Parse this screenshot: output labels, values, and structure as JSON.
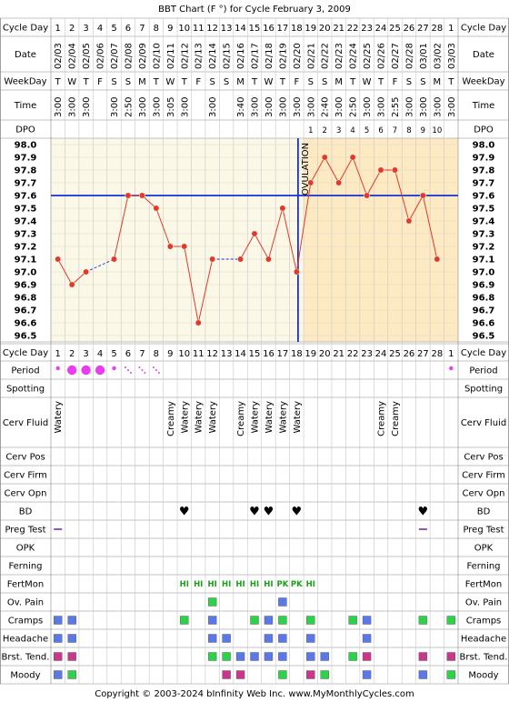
{
  "title": "BBT Chart (F °) for Cycle February 3, 2009",
  "footer": "Copyright © 2003-2024 bInfinity Web Inc.    www.MyMonthlyCycles.com",
  "colors": {
    "line": "#e23a2a",
    "point": "#e23a2a",
    "coverline": "#1a2fd6",
    "ovulation": "#1a2fd6",
    "post_ov_bg": "#fde9c2",
    "pre_bg": "#fbf8e8",
    "period": "#e83ef0",
    "heart": "#e23a7a",
    "fertmon": "#18a018",
    "green": "#2fd04a",
    "blue": "#5a78e6",
    "magenta": "#c8388a"
  },
  "labels": {
    "cycle_day": "Cycle Day",
    "date": "Date",
    "weekday": "WeekDay",
    "time": "Time",
    "dpo": "DPO",
    "ovulation": "OVULATION",
    "period": "Period",
    "spotting": "Spotting",
    "cerv_fluid": "Cerv Fluid",
    "cerv_pos": "Cerv Pos",
    "cerv_firm": "Cerv Firm",
    "cerv_opn": "Cerv Opn",
    "bd": "BD",
    "preg_test": "Preg Test",
    "opk": "OPK",
    "ferning": "Ferning",
    "fertmon": "FertMon",
    "ov_pain": "Ov. Pain",
    "cramps": "Cramps",
    "headache": "Headache",
    "brst_tend": "Brst. Tend.",
    "moody": "Moody"
  },
  "chart_data": {
    "type": "line",
    "title": "BBT Chart (F °) for Cycle February 3, 2009",
    "ylim": [
      96.5,
      98.0
    ],
    "yticks": [
      "98.0",
      "97.9",
      "97.8",
      "97.7",
      "97.6",
      "97.5",
      "97.4",
      "97.3",
      "97.2",
      "97.1",
      "97.0",
      "96.9",
      "96.8",
      "96.7",
      "96.6",
      "96.5"
    ],
    "cycle_days": [
      1,
      2,
      3,
      4,
      5,
      6,
      7,
      8,
      9,
      10,
      11,
      12,
      13,
      14,
      15,
      16,
      17,
      18,
      19,
      20,
      21,
      22,
      23,
      24,
      25,
      26,
      27,
      28,
      1
    ],
    "dates": [
      "02/03",
      "02/04",
      "02/05",
      "02/06",
      "02/07",
      "02/08",
      "02/09",
      "02/10",
      "02/11",
      "02/12",
      "02/13",
      "02/14",
      "02/15",
      "02/16",
      "02/17",
      "02/18",
      "02/19",
      "02/20",
      "02/21",
      "02/22",
      "02/23",
      "02/24",
      "02/25",
      "02/26",
      "02/27",
      "02/28",
      "03/01",
      "03/02",
      "03/03"
    ],
    "weekdays": [
      "T",
      "W",
      "T",
      "F",
      "S",
      "S",
      "M",
      "T",
      "W",
      "T",
      "F",
      "S",
      "S",
      "M",
      "T",
      "W",
      "T",
      "F",
      "S",
      "S",
      "M",
      "T",
      "W",
      "T",
      "F",
      "S",
      "S",
      "M",
      "T"
    ],
    "times": [
      "3:00",
      "3:00",
      "3:00",
      "",
      "3:00",
      "2:50",
      "3:00",
      "3:00",
      "3:05",
      "3:00",
      "",
      "3:00",
      "",
      "3:40",
      "3:00",
      "3:00",
      "3:00",
      "3:00",
      "3:00",
      "2:40",
      "3:00",
      "2:50",
      "3:00",
      "3:00",
      "2:55",
      "3:00",
      "3:00",
      "3:00",
      "3:00"
    ],
    "dpo": [
      "",
      "",
      "",
      "",
      "",
      "",
      "",
      "",
      "",
      "",
      "",
      "",
      "",
      "",
      "",
      "",
      "",
      "",
      "1",
      "2",
      "3",
      "4",
      "5",
      "6",
      "7",
      "8",
      "9",
      "10",
      ""
    ],
    "temps": [
      97.1,
      96.9,
      97.0,
      null,
      97.1,
      97.6,
      97.6,
      97.5,
      97.2,
      97.2,
      96.6,
      97.1,
      null,
      97.1,
      97.3,
      97.1,
      97.5,
      97.0,
      97.7,
      97.9,
      97.7,
      97.9,
      97.6,
      97.8,
      97.8,
      97.4,
      97.6,
      97.1,
      null
    ],
    "dashed_gaps": [
      [
        3,
        5
      ],
      [
        12,
        14
      ]
    ],
    "coverline": 97.6,
    "ovulation_day": 18
  },
  "period": [
    "dot",
    "big",
    "big",
    "big",
    "dot",
    "spot",
    "spot",
    "spot",
    "",
    "",
    "",
    "",
    "",
    "",
    "",
    "",
    "",
    "",
    "",
    "",
    "",
    "",
    "",
    "",
    "",
    "",
    "",
    "",
    "dot"
  ],
  "cerv_fluid": [
    "Watery",
    "",
    "",
    "",
    "",
    "",
    "",
    "",
    "Creamy",
    "Watery",
    "Watery",
    "Watery",
    "",
    "Creamy",
    "Watery",
    "Watery",
    "Watery",
    "Watery",
    "",
    "",
    "",
    "",
    "",
    "Creamy",
    "Creamy",
    "",
    "",
    "",
    ""
  ],
  "bd": [
    10,
    15,
    16,
    18,
    27
  ],
  "preg_test": [
    1,
    27
  ],
  "fertmon": [
    [
      "10",
      "HI"
    ],
    [
      "11",
      "HI"
    ],
    [
      "12",
      "HI"
    ],
    [
      "13",
      "HI"
    ],
    [
      "14",
      "HI"
    ],
    [
      "15",
      "HI"
    ],
    [
      "16",
      "HI"
    ],
    [
      "17",
      "PK"
    ],
    [
      "18",
      "PK"
    ],
    [
      "19",
      "HI"
    ]
  ],
  "ov_pain": [
    [
      12,
      "green"
    ],
    [
      17,
      "blue"
    ]
  ],
  "cramps": [
    [
      1,
      "blue"
    ],
    [
      2,
      "blue"
    ],
    [
      10,
      "green"
    ],
    [
      12,
      "blue"
    ],
    [
      15,
      "green"
    ],
    [
      16,
      "blue"
    ],
    [
      17,
      "green"
    ],
    [
      19,
      "green"
    ],
    [
      22,
      "green"
    ],
    [
      23,
      "blue"
    ],
    [
      27,
      "green"
    ],
    [
      29,
      "green"
    ]
  ],
  "headache": [
    [
      1,
      "blue"
    ],
    [
      2,
      "blue"
    ],
    [
      12,
      "blue"
    ],
    [
      13,
      "blue"
    ],
    [
      16,
      "blue"
    ],
    [
      17,
      "blue"
    ],
    [
      19,
      "blue"
    ],
    [
      23,
      "blue"
    ]
  ],
  "brst_tend": [
    [
      1,
      "magenta"
    ],
    [
      2,
      "magenta"
    ],
    [
      12,
      "green"
    ],
    [
      13,
      "green"
    ],
    [
      14,
      "blue"
    ],
    [
      15,
      "blue"
    ],
    [
      16,
      "blue"
    ],
    [
      17,
      "blue"
    ],
    [
      19,
      "blue"
    ],
    [
      20,
      "blue"
    ],
    [
      22,
      "green"
    ],
    [
      23,
      "magenta"
    ],
    [
      27,
      "magenta"
    ],
    [
      29,
      "magenta"
    ]
  ],
  "moody": [
    [
      1,
      "blue"
    ],
    [
      2,
      "green"
    ],
    [
      13,
      "magenta"
    ],
    [
      14,
      "magenta"
    ],
    [
      17,
      "green"
    ],
    [
      19,
      "magenta"
    ],
    [
      20,
      "green"
    ],
    [
      23,
      "blue"
    ],
    [
      27,
      "blue"
    ],
    [
      29,
      "green"
    ]
  ]
}
